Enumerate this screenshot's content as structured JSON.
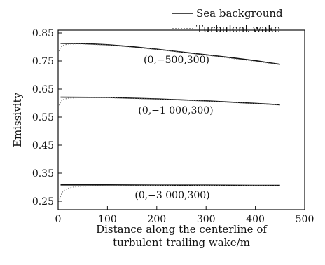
{
  "chart_data": {
    "type": "line",
    "xlabel_lines": [
      "Distance along the centerline of",
      "turbulent trailing wake/m"
    ],
    "ylabel": "Emissivity",
    "xlim": [
      0,
      500
    ],
    "ylim": [
      0.22,
      0.86
    ],
    "xticks": [
      0,
      100,
      200,
      300,
      400,
      500
    ],
    "yticks": [
      0.25,
      0.35,
      0.45,
      0.55,
      0.65,
      0.75,
      0.85
    ],
    "legend": {
      "position": "top-right",
      "entries": [
        {
          "label": "Sea background",
          "style": "solid"
        },
        {
          "label": "Turbulent wake",
          "style": "dotted"
        }
      ]
    },
    "groups": [
      {
        "label": "(0,−500,300)",
        "series": [
          {
            "name": "Sea background",
            "color": "#111111",
            "dash": "none",
            "x": [
              5,
              50,
              100,
              150,
              200,
              250,
              300,
              350,
              400,
              450
            ],
            "y": [
              0.813,
              0.812,
              0.808,
              0.801,
              0.792,
              0.782,
              0.772,
              0.762,
              0.751,
              0.738
            ]
          },
          {
            "name": "Turbulent wake",
            "color": "#777777",
            "dash": "1.5,2",
            "x": [
              2,
              4,
              6,
              8,
              12,
              20,
              40,
              100,
              200,
              300,
              450
            ],
            "y": [
              0.785,
              0.795,
              0.8,
              0.804,
              0.807,
              0.81,
              0.811,
              0.807,
              0.791,
              0.771,
              0.737
            ]
          }
        ]
      },
      {
        "label": "(0,−1 000,300)",
        "series": [
          {
            "name": "Sea background",
            "color": "#111111",
            "dash": "none",
            "x": [
              5,
              100,
              200,
              300,
              400,
              450
            ],
            "y": [
              0.621,
              0.62,
              0.615,
              0.608,
              0.599,
              0.594
            ]
          },
          {
            "name": "Turbulent wake",
            "color": "#777777",
            "dash": "1.5,2",
            "x": [
              2,
              4,
              6,
              8,
              12,
              20,
              40,
              100,
              200,
              300,
              450
            ],
            "y": [
              0.592,
              0.6,
              0.606,
              0.61,
              0.614,
              0.617,
              0.619,
              0.619,
              0.614,
              0.607,
              0.593
            ]
          }
        ]
      },
      {
        "label": "(0,−3 000,300)",
        "series": [
          {
            "name": "Sea background",
            "color": "#111111",
            "dash": "none",
            "x": [
              5,
              100,
              200,
              300,
              400,
              450
            ],
            "y": [
              0.308,
              0.308,
              0.307,
              0.307,
              0.306,
              0.306
            ]
          },
          {
            "name": "Turbulent wake",
            "color": "#777777",
            "dash": "1.5,2",
            "x": [
              2,
              4,
              6,
              8,
              10,
              14,
              20,
              30,
              50,
              80,
              120,
              200,
              300,
              450
            ],
            "y": [
              0.248,
              0.262,
              0.272,
              0.28,
              0.285,
              0.291,
              0.296,
              0.3,
              0.303,
              0.305,
              0.306,
              0.306,
              0.306,
              0.305
            ]
          }
        ]
      }
    ]
  }
}
